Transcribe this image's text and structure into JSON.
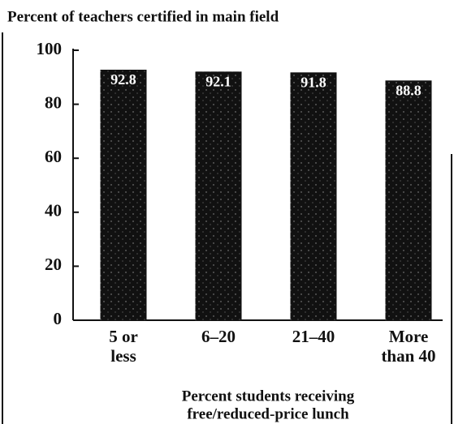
{
  "chart_data": {
    "type": "bar",
    "title": "Percent of teachers certified in main field",
    "categories": [
      [
        "5 or",
        "less"
      ],
      [
        "6–20"
      ],
      [
        "21–40"
      ],
      [
        "More",
        "than 40"
      ]
    ],
    "values": [
      92.8,
      92.1,
      91.8,
      88.8
    ],
    "color": "#111111",
    "ylim": [
      0,
      100
    ],
    "yticks": [
      0,
      20,
      40,
      60,
      80,
      100
    ],
    "x_label": [
      "Percent students receiving",
      "free/reduced-price lunch"
    ]
  }
}
